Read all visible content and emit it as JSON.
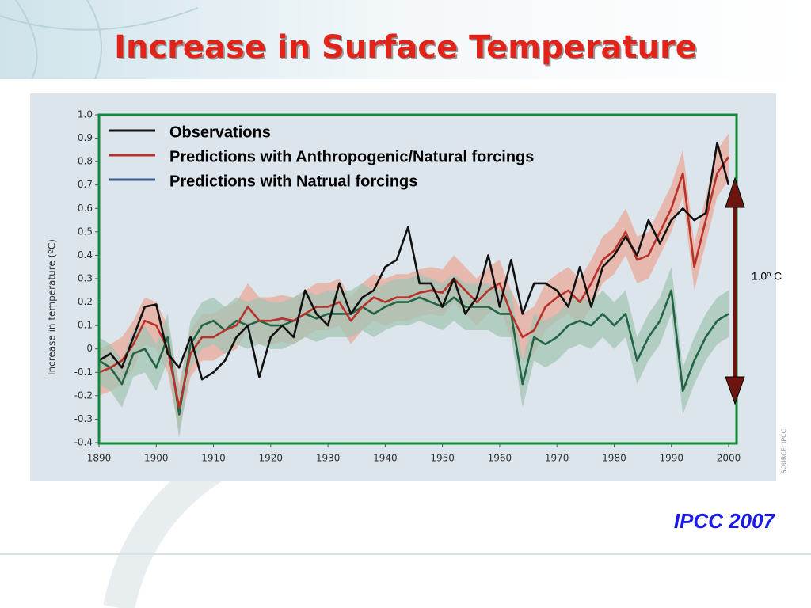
{
  "chart_data": {
    "type": "line",
    "title": "Increase in Surface Temperature",
    "ylabel": "Increase in temperature (ºC)",
    "source": "SOURCE: IPCC",
    "annotation": "1.0º C",
    "citation": "IPCC 2007",
    "xlim": [
      1890,
      2000
    ],
    "ylim": [
      -0.4,
      1.0
    ],
    "xticks": [
      1890,
      1900,
      1910,
      1920,
      1930,
      1940,
      1950,
      1960,
      1970,
      1980,
      1990,
      2000
    ],
    "yticks": [
      {
        "value": 1.0,
        "label": "1.0"
      },
      0.9,
      0.8,
      0.7,
      0.6,
      0.5,
      0.4,
      0.3,
      0.2,
      0.1,
      0,
      -0.1,
      -0.2,
      -0.3,
      -0.4
    ],
    "x": [
      1890,
      1892,
      1894,
      1896,
      1898,
      1900,
      1902,
      1904,
      1906,
      1908,
      1910,
      1912,
      1914,
      1916,
      1918,
      1920,
      1922,
      1924,
      1926,
      1928,
      1930,
      1932,
      1934,
      1936,
      1938,
      1940,
      1942,
      1944,
      1946,
      1948,
      1950,
      1952,
      1954,
      1956,
      1958,
      1960,
      1962,
      1964,
      1966,
      1968,
      1970,
      1972,
      1974,
      1976,
      1978,
      1980,
      1982,
      1984,
      1986,
      1988,
      1990,
      1992,
      1994,
      1996,
      1998,
      2000
    ],
    "series": [
      {
        "name": "Observations",
        "color": "#111111",
        "legend_color": "#111111",
        "values": [
          -0.05,
          -0.02,
          -0.08,
          0.05,
          0.18,
          0.19,
          -0.02,
          -0.08,
          0.05,
          -0.13,
          -0.1,
          -0.05,
          0.05,
          0.1,
          -0.12,
          0.05,
          0.1,
          0.05,
          0.25,
          0.15,
          0.1,
          0.28,
          0.15,
          0.22,
          0.25,
          0.35,
          0.38,
          0.52,
          0.28,
          0.28,
          0.18,
          0.3,
          0.15,
          0.22,
          0.4,
          0.18,
          0.38,
          0.15,
          0.28,
          0.28,
          0.25,
          0.18,
          0.35,
          0.18,
          0.35,
          0.4,
          0.48,
          0.4,
          0.55,
          0.45,
          0.55,
          0.6,
          0.55,
          0.58,
          0.88,
          0.7
        ]
      },
      {
        "name": "Predictions with Anthropogenic/Natural forcings",
        "color": "#b8322a",
        "legend_color": "#b8322a",
        "band": 0.1,
        "band_color": "#e8a89a",
        "values": [
          -0.1,
          -0.08,
          -0.05,
          0.02,
          0.12,
          0.1,
          0.0,
          -0.25,
          -0.02,
          0.05,
          0.05,
          0.08,
          0.1,
          0.18,
          0.12,
          0.12,
          0.13,
          0.12,
          0.15,
          0.18,
          0.18,
          0.2,
          0.12,
          0.18,
          0.22,
          0.2,
          0.22,
          0.22,
          0.24,
          0.25,
          0.24,
          0.3,
          0.25,
          0.2,
          0.25,
          0.28,
          0.15,
          0.05,
          0.08,
          0.18,
          0.22,
          0.25,
          0.2,
          0.28,
          0.38,
          0.42,
          0.5,
          0.38,
          0.4,
          0.5,
          0.6,
          0.75,
          0.35,
          0.55,
          0.75,
          0.82
        ]
      },
      {
        "name": "Predictions with Natrual forcings",
        "color": "#236447",
        "legend_color": "#3a5a8c",
        "band": 0.1,
        "band_color": "#a3c4b4",
        "values": [
          -0.05,
          -0.08,
          -0.15,
          -0.02,
          0.0,
          -0.08,
          0.05,
          -0.28,
          0.02,
          0.1,
          0.12,
          0.08,
          0.12,
          0.1,
          0.12,
          0.1,
          0.1,
          0.12,
          0.15,
          0.13,
          0.15,
          0.15,
          0.15,
          0.18,
          0.15,
          0.18,
          0.2,
          0.2,
          0.22,
          0.2,
          0.18,
          0.22,
          0.18,
          0.18,
          0.18,
          0.15,
          0.15,
          -0.15,
          0.05,
          0.02,
          0.05,
          0.1,
          0.12,
          0.1,
          0.15,
          0.1,
          0.15,
          -0.05,
          0.05,
          0.12,
          0.25,
          -0.18,
          -0.05,
          0.05,
          0.12,
          0.15
        ]
      }
    ]
  }
}
